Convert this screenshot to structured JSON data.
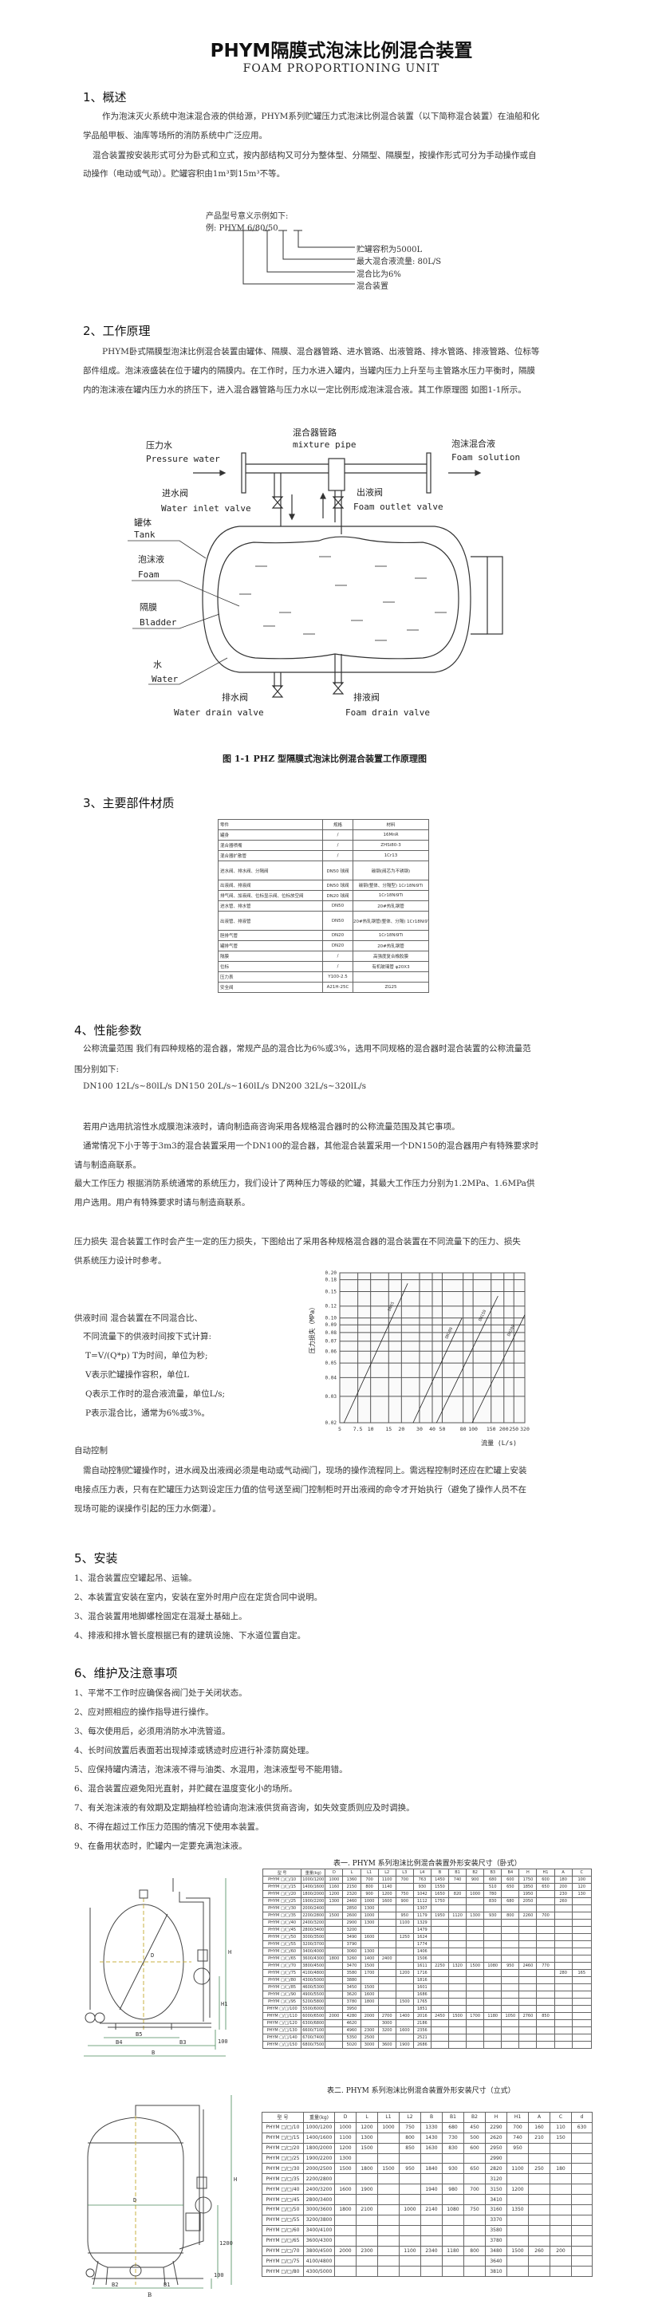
{
  "header": {
    "title": "PHYM隔膜式泡沫比例混合装置",
    "subtitle": "FOAM PROPORTIONING UNIT"
  },
  "s1": {
    "heading": "1、概述",
    "lines": [
      "作为泡沫灭火系统中泡沫混合液的供给源，PHYM系列贮罐压力式泡沫比例混合装置（以下简称混合装置）在油船和化",
      "学品船甲板、油库等场所的消防系统中广泛应用。",
      "混合装置按安装形式可分为卧式和立式，按内部结构又可分为整体型、分隔型、隔膜型，按操作形式可分为手动操作或自",
      "动操作（电动或气动）。贮罐容积由1m³到15m³不等。"
    ],
    "model": {
      "intro": "产品型号意义示例如下:",
      "example_prefix": "例: ",
      "code": "PHYM",
      "a": "6",
      "b": "80",
      "c": "50",
      "meanings": [
        "贮罐容积为5000L",
        "最大混合液流量: 80L/S",
        "混合比为6%",
        "混合装置"
      ]
    }
  },
  "s2": {
    "heading": "2、工作原理",
    "lines": [
      "PHYM卧式隔膜型泡沫比例混合装置由罐体、隔膜、混合器管路、进水管路、出液管路、排水管路、排液管路、位标等",
      "部件组成。泡沫液盛装在位于罐内的隔膜内。在工作时，压力水进入罐内，当罐内压力上升至与主管路水压力平衡时，隔膜",
      "内的泡沫液在罐内压力水的挤压下，进入混合器管路与压力水以一定比例形成泡沫混合液。其工作原理图 如图1-1所示。"
    ],
    "diagram": {
      "mixer_cn": "混合器管路",
      "mixer_en": "mixture pipe",
      "water_cn": "压力水",
      "water_en": "Pressure water",
      "foam_sol_cn": "泡沫混合液",
      "foam_sol_en": "Foam solution",
      "inlet_cn": "进水阀",
      "inlet_en": "Water inlet valve",
      "outlet_cn": "出液阀",
      "outlet_en": "Foam outlet valve",
      "tank_cn": "罐体",
      "tank_en": "Tank",
      "foam_cn": "泡沫液",
      "foam_en": "Foam",
      "bladder_cn": "隔膜",
      "bladder_en": "Bladder",
      "w_cn": "水",
      "w_en": "Water",
      "wdrain_cn": "排水阀",
      "wdrain_en": "Water drain valve",
      "fdrain_cn": "排液阀",
      "fdrain_en": "Foam drain valve"
    },
    "caption": "图 1-1 PHZ 型隔膜式泡沫比例混合装置工作原理图"
  },
  "s3": {
    "heading": "3、主要部件材质",
    "table": {
      "headers": [
        "零件",
        "规格",
        "材料"
      ],
      "rows": [
        [
          "罐身",
          "/",
          "16MnR"
        ],
        [
          "混合器喷嘴",
          "/",
          "ZHSi80-3"
        ],
        [
          "混合器扩散管",
          "/",
          "1Cr13"
        ],
        [
          "进水阀、排水阀、分隔阀",
          "DN50 球阀",
          "碳钢(阀芯为不锈钢)"
        ],
        [
          "出液阀、排液阀",
          "DN50 球阀",
          "碳钢(整体、分隔型) 1Cr18Ni9Ti"
        ],
        [
          "排气阀、加液阀、位标显示阀、位标放空阀",
          "DN20 球阀",
          "1Cr18Ni9Ti"
        ],
        [
          "进水管、排水管",
          "DN50",
          "20#热轧钢管"
        ],
        [
          "出液管、排液管",
          "DN50",
          "20#热轧钢管(整体、分隔) 1Cr18Ni9Ti(隔膜型)"
        ],
        [
          "胆排气管",
          "DN20",
          "1Cr18Ni9Ti"
        ],
        [
          "罐排气管",
          "DN20",
          "20#热轧钢管"
        ],
        [
          "隔膜",
          "/",
          "高强度复合橡胶膜"
        ],
        [
          "位标",
          "/",
          "有机玻璃管 φ20X3"
        ],
        [
          "压力表",
          "Y100-2.5",
          ""
        ],
        [
          "安全阀",
          "A21H-25C",
          "ZG25"
        ]
      ]
    }
  },
  "s4": {
    "heading": "4、性能参数",
    "lines": [
      "公称流量范围  我们有四种规格的混合器，常规产品的混合比为6%或3%，选用不同规格的混合器时混合装置的公称流量范",
      "围分别如下:",
      "DN100  12L/s~80lL/s   DN150  20L/s~160lL/s   DN200  32L/s~320lL/s",
      "若用户选用抗溶性水成膜泡沫液时，请向制造商咨询采用各规格混合器时的公称流量范围及其它事项。",
      "通常情况下小于等于3m3的混合装置采用一个DN100的混合器，其他混合装置采用一个DN150的混合器用户有特殊要求时",
      "请与制造商联系。",
      "最大工作压力  根据消防系统通常的系统压力，我们设计了两种压力等级的贮罐，其最大工作压力分别为1.2MPa、1.6MPa供",
      "用户选用。用户有特殊要求时请与制造商联系。",
      "压力损失  混合装置工作时会产生一定的压力损失，下图给出了采用各种规格混合器的混合装置在不同流量下的压力、损失",
      "供系统压力设计时参考。"
    ],
    "supply": [
      "供液时间  混合装置在不同混合比、",
      "不同流量下的供液时间按下式计算:",
      "T=V/(Q*p)     T为时间，单位为秒;",
      "V表示贮罐操作容积，单位L",
      "Q表示工作时的混合液流量，单位L/s;",
      "P表示混合比，通常为6%或3%。"
    ],
    "auto": [
      "自动控制",
      "需自动控制贮罐操作时，进水阀及出液阀必须是电动或气动阀门，现场的操作流程同上。需远程控制时还应在贮罐上安装",
      "电接点压力表，只有在贮罐压力达到设定压力值的信号送至阀门控制柜时开出液阀的命令才开始执行（避免了操作人员不在",
      "现场可能的误操作引起的压力水倒灌）。"
    ]
  },
  "chart_data": {
    "type": "line",
    "xscale": "log",
    "yscale": "log",
    "xlabel": "流量 (L/s)",
    "ylabel": "压力损失（MPa）",
    "xlim": [
      5,
      320
    ],
    "ylim": [
      0.02,
      0.2
    ],
    "grid": true,
    "xticks": [
      "5",
      "7.5",
      "10",
      "15",
      "20",
      "30",
      "40",
      "50",
      "80",
      "100",
      "150",
      "200",
      "250",
      "320"
    ],
    "yticks": [
      "0.02",
      "0.03",
      "0.04",
      "0.05",
      "0.06",
      "0.07",
      "0.08",
      "0.09",
      "0.10",
      "0.12",
      "0.15",
      "0.18",
      "0.20"
    ],
    "series": [
      {
        "name": "DN65",
        "points": [
          [
            5.5,
            0.02
          ],
          [
            23,
            0.17
          ]
        ]
      },
      {
        "name": "DN100",
        "points": [
          [
            26,
            0.02
          ],
          [
            78,
            0.1
          ]
        ]
      },
      {
        "name": "DN150",
        "points": [
          [
            44,
            0.02
          ],
          [
            175,
            0.14
          ]
        ]
      },
      {
        "name": "DN200",
        "points": [
          [
            98,
            0.02
          ],
          [
            320,
            0.105
          ]
        ]
      }
    ]
  },
  "s5": {
    "heading": "5、安装",
    "items": [
      "1、混合装置应空罐起吊、运输。",
      "2、本装置宜安装在室内，安装在室外时用户应在定货合同中说明。",
      "3、混合装置用地脚螺栓固定在混凝土基础上。",
      "4、排液和排水管长度根据已有的建筑设施、下水道位置自定。"
    ]
  },
  "s6": {
    "heading": "6、维护及注意事项",
    "items": [
      "1、平常不工作时应确保各阀门处于关闭状态。",
      "2、应对照相应的操作指导进行操作。",
      "3、每次使用后，必须用消防水冲洗管道。",
      "4、长时间放置后表面若出现掉漆或锈迹时应进行补漆防腐处理。",
      "5、应保持罐内清洁，泡沫液不得与油类、水混用，泡沫液型号不能用错。",
      "6、混合装置应避免阳光直射，并贮藏在温度变化小的场所。",
      "7、有关泡沫液的有效期及定期抽样检验请向泡沫液供货商咨询，如失效变质则应及时调换。",
      "8、不得在超过工作压力范围的情况下使用本装置。",
      "9、在备用状态时，贮罐内一定要充满泡沫液。"
    ]
  },
  "table1": {
    "title": "表一. PHYM 系列泡沫比例混合装置外形安装尺寸（卧式）",
    "headers": [
      "型  号",
      "重量(kg)",
      "D",
      "L",
      "L1",
      "L2",
      "L3",
      "L4",
      "B",
      "B1",
      "B2",
      "B3",
      "B4",
      "H",
      "H1",
      "A",
      "C"
    ],
    "rows": [
      [
        "PHYM □/□/10",
        "1000/1200",
        "1000",
        "1360",
        "700",
        "1100",
        "700",
        "763",
        "1450",
        "740",
        "900",
        "680",
        "600",
        "1750",
        "600",
        "180",
        "100"
      ],
      [
        "PHYM □/□/15",
        "1400/1600",
        "1160",
        "2150",
        "800",
        "1140",
        "",
        "930",
        "1550",
        "",
        "",
        "510",
        "650",
        "1850",
        "650",
        "200",
        "120"
      ],
      [
        "PHYM □/□/20",
        "1800/2000",
        "1200",
        "2320",
        "900",
        "1200",
        "750",
        "1042",
        "1650",
        "820",
        "1000",
        "780",
        "",
        "1950",
        "",
        "230",
        "130"
      ],
      [
        "PHYM □/□/25",
        "1900/2200",
        "1300",
        "2460",
        "1000",
        "1600",
        "900",
        "1112",
        "1750",
        "",
        "",
        "830",
        "680",
        "2050",
        "",
        "260",
        ""
      ],
      [
        "PHYM □/□/30",
        "2000/2400",
        "",
        "2850",
        "1300",
        "",
        "",
        "1307",
        "",
        "",
        "",
        "",
        "",
        "",
        "",
        "",
        ""
      ],
      [
        "PHYM □/□/35",
        "2200/2800",
        "1500",
        "2600",
        "1000",
        "",
        "950",
        "1179",
        "1950",
        "1120",
        "1300",
        "930",
        "800",
        "2260",
        "700",
        "",
        ""
      ],
      [
        "PHYM □/□/40",
        "2400/3200",
        "",
        "2900",
        "1300",
        "",
        "1100",
        "1329",
        "",
        "",
        "",
        "",
        "",
        "",
        "",
        "",
        ""
      ],
      [
        "PHYM □/□/45",
        "2800/3400",
        "",
        "3200",
        "",
        "",
        "",
        "1479",
        "",
        "",
        "",
        "",
        "",
        "",
        "",
        "",
        ""
      ],
      [
        "PHYM □/□/50",
        "3000/3500",
        "",
        "3490",
        "1600",
        "",
        "1250",
        "1624",
        "",
        "",
        "",
        "",
        "",
        "",
        "",
        "",
        ""
      ],
      [
        "PHYM □/□/55",
        "3200/3700",
        "",
        "3790",
        "",
        "",
        "",
        "1774",
        "",
        "",
        "",
        "",
        "",
        "",
        "",
        "",
        ""
      ],
      [
        "PHYM □/□/60",
        "3400/4000",
        "",
        "3060",
        "1300",
        "",
        "",
        "1406",
        "",
        "",
        "",
        "",
        "",
        "",
        "",
        "",
        ""
      ],
      [
        "PHYM □/□/65",
        "3600/4300",
        "1800",
        "3260",
        "1400",
        "2400",
        "",
        "1506",
        "",
        "",
        "",
        "",
        "",
        "",
        "",
        "",
        ""
      ],
      [
        "PHYM □/□/70",
        "3800/4500",
        "",
        "3470",
        "1500",
        "",
        "",
        "1611",
        "2250",
        "1320",
        "1500",
        "1080",
        "950",
        "2460",
        "770",
        "",
        ""
      ],
      [
        "PHYM □/□/75",
        "4100/4800",
        "",
        "3580",
        "1700",
        "",
        "1200",
        "1716",
        "",
        "",
        "",
        "",
        "",
        "",
        "",
        "280",
        "165"
      ],
      [
        "PHYM □/□/80",
        "4300/5000",
        "",
        "3880",
        "",
        "",
        "",
        "1816",
        "",
        "",
        "",
        "",
        "",
        "",
        "",
        "",
        ""
      ],
      [
        "PHYM □/□/85",
        "4600/5300",
        "",
        "3450",
        "1500",
        "",
        "",
        "1601",
        "",
        "",
        "",
        "",
        "",
        "",
        "",
        "",
        ""
      ],
      [
        "PHYM □/□/90",
        "4900/5500",
        "",
        "3620",
        "1600",
        "",
        "",
        "1686",
        "",
        "",
        "",
        "",
        "",
        "",
        "",
        "",
        ""
      ],
      [
        "PHYM □/□/95",
        "5200/5800",
        "",
        "3780",
        "1800",
        "",
        "1500",
        "1765",
        "",
        "",
        "",
        "",
        "",
        "",
        "",
        "",
        ""
      ],
      [
        "PHYM □/□/100",
        "5500/6000",
        "",
        "3950",
        "",
        "",
        "",
        "1851",
        "",
        "",
        "",
        "",
        "",
        "",
        "",
        "",
        ""
      ],
      [
        "PHYM □/□/110",
        "6000/6500",
        "2000",
        "4280",
        "2000",
        "2700",
        "1400",
        "2016",
        "2450",
        "1500",
        "1700",
        "1180",
        "1050",
        "2760",
        "850",
        "",
        ""
      ],
      [
        "PHYM □/□/120",
        "6300/6800",
        "",
        "4620",
        "",
        "3000",
        "",
        "2186",
        "",
        "",
        "",
        "",
        "",
        "",
        "",
        "",
        ""
      ],
      [
        "PHYM □/□/130",
        "6600/7100",
        "",
        "4960",
        "2300",
        "3200",
        "1600",
        "2356",
        "",
        "",
        "",
        "",
        "",
        "",
        "",
        "",
        ""
      ],
      [
        "PHYM □/□/140",
        "6700/7400",
        "",
        "5350",
        "2500",
        "",
        "",
        "2521",
        "",
        "",
        "",
        "",
        "",
        "",
        "",
        "",
        ""
      ],
      [
        "PHYM □/□/150",
        "6800/7500",
        "",
        "5020",
        "3000",
        "3600",
        "1900",
        "2686",
        "",
        "",
        "",
        "",
        "",
        "",
        "",
        "",
        ""
      ]
    ]
  },
  "table2": {
    "title": "表二. PHYM 系列泡沫比例混合装置外形安装尺寸（立式）",
    "headers": [
      "型  号",
      "重量(kg)",
      "D",
      "L",
      "L1",
      "L2",
      "B",
      "B1",
      "B2",
      "H",
      "H1",
      "A",
      "C",
      "d"
    ],
    "rows": [
      [
        "PHYM □/□/10",
        "1000/1200",
        "1000",
        "1200",
        "1000",
        "750",
        "1330",
        "680",
        "450",
        "2290",
        "700",
        "160",
        "110",
        "630"
      ],
      [
        "PHYM □/□/15",
        "1400/1600",
        "1100",
        "1300",
        "",
        "800",
        "1430",
        "730",
        "500",
        "2620",
        "740",
        "210",
        "150",
        ""
      ],
      [
        "PHYM □/□/20",
        "1800/2000",
        "1200",
        "1500",
        "",
        "850",
        "1630",
        "830",
        "600",
        "2950",
        "950",
        "",
        "",
        ""
      ],
      [
        "PHYM □/□/25",
        "1900/2200",
        "1300",
        "",
        "",
        "",
        "",
        "",
        "",
        "2990",
        "",
        "",
        "",
        ""
      ],
      [
        "PHYM □/□/30",
        "2000/2500",
        "1500",
        "1800",
        "1500",
        "950",
        "1840",
        "930",
        "650",
        "2820",
        "1100",
        "250",
        "180",
        ""
      ],
      [
        "PHYM □/□/35",
        "2200/2800",
        "",
        "",
        "",
        "",
        "",
        "",
        "",
        "3120",
        "",
        "",
        "",
        ""
      ],
      [
        "PHYM □/□/40",
        "2400/3200",
        "1600",
        "1900",
        "",
        "",
        "1940",
        "980",
        "700",
        "3150",
        "1200",
        "",
        "",
        ""
      ],
      [
        "PHYM □/□/45",
        "2800/3400",
        "",
        "",
        "",
        "",
        "",
        "",
        "",
        "3410",
        "",
        "",
        "",
        ""
      ],
      [
        "PHYM □/□/50",
        "3000/3600",
        "1800",
        "2100",
        "",
        "1000",
        "2140",
        "1080",
        "750",
        "3160",
        "1350",
        "",
        "",
        ""
      ],
      [
        "PHYM □/□/55",
        "3200/3800",
        "",
        "",
        "",
        "",
        "",
        "",
        "",
        "3370",
        "",
        "",
        "",
        ""
      ],
      [
        "PHYM □/□/60",
        "3400/4100",
        "",
        "",
        "",
        "",
        "",
        "",
        "",
        "3580",
        "",
        "",
        "",
        ""
      ],
      [
        "PHYM □/□/65",
        "3600/4300",
        "",
        "",
        "",
        "",
        "",
        "",
        "",
        "3780",
        "",
        "",
        "",
        ""
      ],
      [
        "PHYM □/□/70",
        "3800/4500",
        "2000",
        "2300",
        "",
        "1100",
        "2340",
        "1180",
        "800",
        "3480",
        "1500",
        "260",
        "200",
        ""
      ],
      [
        "PHYM □/□/75",
        "4100/4800",
        "",
        "",
        "",
        "",
        "",
        "",
        "",
        "3640",
        "",
        "",
        "",
        ""
      ],
      [
        "PHYM □/□/80",
        "4300/5000",
        "",
        "",
        "",
        "",
        "",
        "",
        "",
        "3810",
        "",
        "",
        "",
        ""
      ]
    ]
  },
  "drawing1": {
    "labels": [
      "D",
      "H",
      "H1",
      "B5",
      "B4",
      "B3",
      "B",
      "100"
    ]
  },
  "drawing2": {
    "labels": [
      "D",
      "H",
      "1200",
      "100",
      "B2",
      "B1",
      "B"
    ]
  },
  "colors": {
    "text": "#222222",
    "line": "#333333",
    "dim_line": "#4a8a5a",
    "center_line": "#c8b040"
  }
}
